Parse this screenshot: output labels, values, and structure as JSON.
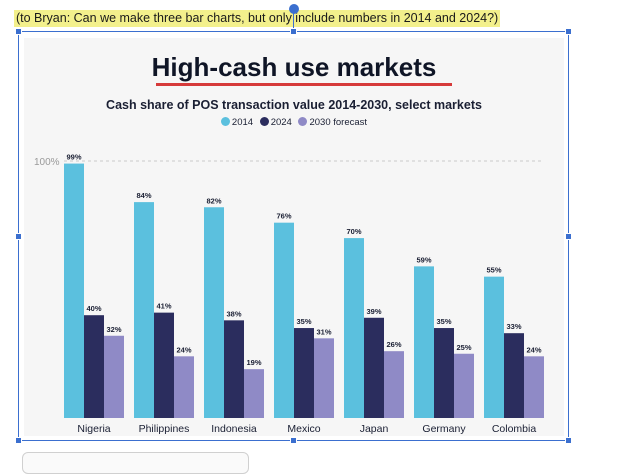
{
  "note": {
    "text": "(to Bryan: Can we make three bar charts, but only include numbers in 2014 and 2024?)"
  },
  "chart_data": {
    "type": "bar",
    "title": "High-cash use markets",
    "subtitle": "Cash share of POS transaction value 2014-2030, select markets",
    "categories": [
      "Nigeria",
      "Philippines",
      "Indonesia",
      "Mexico",
      "Japan",
      "Germany",
      "Colombia"
    ],
    "series": [
      {
        "name": "2014",
        "color": "#5bc0de",
        "values": [
          99,
          84,
          82,
          76,
          70,
          59,
          55
        ]
      },
      {
        "name": "2024",
        "color": "#2b2d5e",
        "values": [
          40,
          41,
          38,
          35,
          39,
          35,
          33
        ]
      },
      {
        "name": "2030 forecast",
        "color": "#8f8ac6",
        "values": [
          32,
          24,
          19,
          31,
          26,
          25,
          24
        ]
      }
    ],
    "reference_line": {
      "value": 100,
      "label": "100%"
    },
    "value_suffix": "%",
    "ylim": [
      0,
      100
    ],
    "legend_position": "top-center",
    "xlabel": "",
    "ylabel": ""
  }
}
